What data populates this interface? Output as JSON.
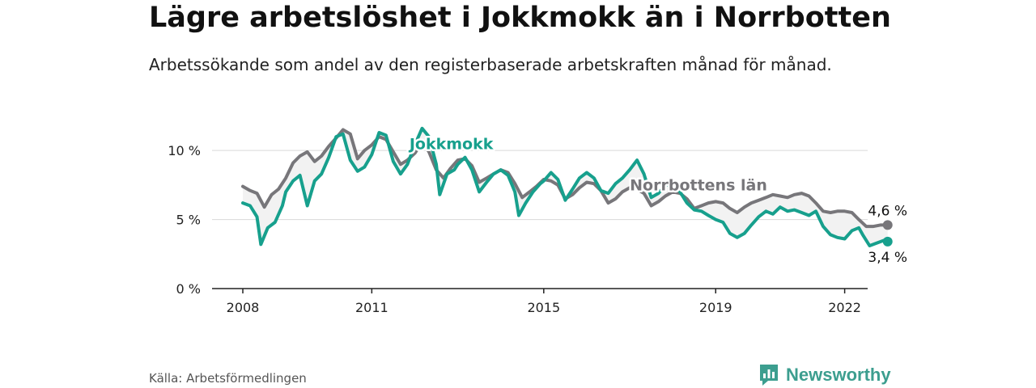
{
  "title": "Lägre arbetslöshet i Jokkmokk än i Norrbotten",
  "subtitle": "Arbetssökande som andel av den registerbaserade arbetskraften månad för månad.",
  "source": "Källa: Arbetsförmedlingen",
  "brand": "Newsworthy",
  "colors": {
    "jokkmokk": "#17a08d",
    "norrbotten": "#77767a",
    "fill": "#f2f2f2",
    "grid": "#d9d9d9",
    "brand": "#3c9e8f"
  },
  "chart_data": {
    "type": "line",
    "x_domain": [
      2008,
      2023.25
    ],
    "ylim": [
      0,
      12
    ],
    "y_ticks": [
      {
        "value": 0,
        "label": "0 %"
      },
      {
        "value": 5,
        "label": "5 %"
      },
      {
        "value": 10,
        "label": "10 %"
      }
    ],
    "x_ticks": [
      {
        "value": 2008,
        "label": "2008"
      },
      {
        "value": 2011,
        "label": "2011"
      },
      {
        "value": 2015,
        "label": "2015"
      },
      {
        "value": 2019,
        "label": "2019"
      },
      {
        "value": 2022,
        "label": "2022"
      }
    ],
    "series": [
      {
        "name": "Norrbottens län",
        "key": "norrbotten",
        "end_label": "4,6 %",
        "points": [
          [
            2008.0,
            7.4
          ],
          [
            2008.17,
            7.1
          ],
          [
            2008.33,
            6.9
          ],
          [
            2008.5,
            5.9
          ],
          [
            2008.67,
            6.8
          ],
          [
            2008.83,
            7.2
          ],
          [
            2009.0,
            8.0
          ],
          [
            2009.17,
            9.1
          ],
          [
            2009.33,
            9.6
          ],
          [
            2009.5,
            9.9
          ],
          [
            2009.67,
            9.2
          ],
          [
            2009.83,
            9.6
          ],
          [
            2010.0,
            10.3
          ],
          [
            2010.17,
            10.9
          ],
          [
            2010.33,
            11.5
          ],
          [
            2010.5,
            11.2
          ],
          [
            2010.67,
            9.4
          ],
          [
            2010.83,
            10.0
          ],
          [
            2011.0,
            10.4
          ],
          [
            2011.17,
            11.0
          ],
          [
            2011.33,
            10.8
          ],
          [
            2011.5,
            9.9
          ],
          [
            2011.67,
            9.0
          ],
          [
            2011.83,
            9.3
          ],
          [
            2012.0,
            9.8
          ],
          [
            2012.17,
            10.6
          ],
          [
            2012.33,
            9.9
          ],
          [
            2012.5,
            8.6
          ],
          [
            2012.67,
            8.0
          ],
          [
            2012.83,
            8.7
          ],
          [
            2013.0,
            9.3
          ],
          [
            2013.17,
            9.4
          ],
          [
            2013.33,
            8.9
          ],
          [
            2013.5,
            7.7
          ],
          [
            2013.67,
            8.0
          ],
          [
            2013.83,
            8.3
          ],
          [
            2014.0,
            8.6
          ],
          [
            2014.17,
            8.4
          ],
          [
            2014.33,
            7.6
          ],
          [
            2014.5,
            6.6
          ],
          [
            2014.67,
            7.0
          ],
          [
            2014.83,
            7.4
          ],
          [
            2015.0,
            7.9
          ],
          [
            2015.17,
            7.8
          ],
          [
            2015.33,
            7.5
          ],
          [
            2015.5,
            6.5
          ],
          [
            2015.67,
            6.8
          ],
          [
            2015.83,
            7.3
          ],
          [
            2016.0,
            7.7
          ],
          [
            2016.17,
            7.6
          ],
          [
            2016.33,
            7.1
          ],
          [
            2016.5,
            6.2
          ],
          [
            2016.67,
            6.5
          ],
          [
            2016.83,
            7.0
          ],
          [
            2017.0,
            7.3
          ],
          [
            2017.17,
            7.2
          ],
          [
            2017.33,
            6.9
          ],
          [
            2017.5,
            6.0
          ],
          [
            2017.67,
            6.3
          ],
          [
            2017.83,
            6.7
          ],
          [
            2018.0,
            7.0
          ],
          [
            2018.17,
            6.9
          ],
          [
            2018.33,
            6.5
          ],
          [
            2018.5,
            5.8
          ],
          [
            2018.67,
            6.0
          ],
          [
            2018.83,
            6.2
          ],
          [
            2019.0,
            6.3
          ],
          [
            2019.17,
            6.2
          ],
          [
            2019.33,
            5.8
          ],
          [
            2019.5,
            5.5
          ],
          [
            2019.67,
            5.9
          ],
          [
            2019.83,
            6.2
          ],
          [
            2020.0,
            6.4
          ],
          [
            2020.17,
            6.6
          ],
          [
            2020.33,
            6.8
          ],
          [
            2020.5,
            6.7
          ],
          [
            2020.67,
            6.6
          ],
          [
            2020.83,
            6.8
          ],
          [
            2021.0,
            6.9
          ],
          [
            2021.17,
            6.7
          ],
          [
            2021.33,
            6.2
          ],
          [
            2021.5,
            5.6
          ],
          [
            2021.67,
            5.5
          ],
          [
            2021.83,
            5.6
          ],
          [
            2022.0,
            5.6
          ],
          [
            2022.17,
            5.5
          ],
          [
            2022.33,
            5.0
          ],
          [
            2022.5,
            4.5
          ],
          [
            2022.67,
            4.5
          ],
          [
            2022.83,
            4.6
          ],
          [
            2023.0,
            4.6
          ]
        ]
      },
      {
        "name": "Jokkmokk",
        "key": "jokkmokk",
        "end_label": "3,4 %",
        "points": [
          [
            2008.0,
            6.2
          ],
          [
            2008.17,
            6.0
          ],
          [
            2008.33,
            5.2
          ],
          [
            2008.42,
            3.2
          ],
          [
            2008.58,
            4.4
          ],
          [
            2008.75,
            4.8
          ],
          [
            2008.92,
            6.0
          ],
          [
            2009.0,
            7.0
          ],
          [
            2009.17,
            7.8
          ],
          [
            2009.33,
            8.2
          ],
          [
            2009.5,
            6.0
          ],
          [
            2009.67,
            7.8
          ],
          [
            2009.83,
            8.3
          ],
          [
            2010.0,
            9.5
          ],
          [
            2010.17,
            11.0
          ],
          [
            2010.33,
            11.2
          ],
          [
            2010.5,
            9.3
          ],
          [
            2010.67,
            8.5
          ],
          [
            2010.83,
            8.8
          ],
          [
            2011.0,
            9.7
          ],
          [
            2011.17,
            11.3
          ],
          [
            2011.33,
            11.1
          ],
          [
            2011.5,
            9.2
          ],
          [
            2011.67,
            8.3
          ],
          [
            2011.83,
            9.0
          ],
          [
            2012.0,
            10.4
          ],
          [
            2012.17,
            11.6
          ],
          [
            2012.33,
            11.0
          ],
          [
            2012.5,
            9.0
          ],
          [
            2012.58,
            6.8
          ],
          [
            2012.75,
            8.3
          ],
          [
            2012.92,
            8.6
          ],
          [
            2013.0,
            9.0
          ],
          [
            2013.17,
            9.5
          ],
          [
            2013.33,
            8.6
          ],
          [
            2013.5,
            7.0
          ],
          [
            2013.67,
            7.7
          ],
          [
            2013.83,
            8.3
          ],
          [
            2014.0,
            8.6
          ],
          [
            2014.17,
            8.2
          ],
          [
            2014.33,
            7.0
          ],
          [
            2014.42,
            5.3
          ],
          [
            2014.58,
            6.2
          ],
          [
            2014.75,
            7.0
          ],
          [
            2014.92,
            7.6
          ],
          [
            2015.0,
            7.8
          ],
          [
            2015.17,
            8.4
          ],
          [
            2015.33,
            7.9
          ],
          [
            2015.5,
            6.4
          ],
          [
            2015.67,
            7.2
          ],
          [
            2015.83,
            8.0
          ],
          [
            2016.0,
            8.4
          ],
          [
            2016.17,
            8.0
          ],
          [
            2016.33,
            7.1
          ],
          [
            2016.5,
            6.9
          ],
          [
            2016.67,
            7.6
          ],
          [
            2016.83,
            8.0
          ],
          [
            2017.0,
            8.6
          ],
          [
            2017.17,
            9.3
          ],
          [
            2017.33,
            8.3
          ],
          [
            2017.5,
            6.6
          ],
          [
            2017.67,
            6.9
          ],
          [
            2017.83,
            7.5
          ],
          [
            2018.0,
            7.6
          ],
          [
            2018.17,
            7.0
          ],
          [
            2018.33,
            6.2
          ],
          [
            2018.5,
            5.7
          ],
          [
            2018.67,
            5.6
          ],
          [
            2018.83,
            5.3
          ],
          [
            2019.0,
            5.0
          ],
          [
            2019.17,
            4.8
          ],
          [
            2019.33,
            4.0
          ],
          [
            2019.5,
            3.7
          ],
          [
            2019.67,
            4.0
          ],
          [
            2019.83,
            4.6
          ],
          [
            2020.0,
            5.2
          ],
          [
            2020.17,
            5.6
          ],
          [
            2020.33,
            5.4
          ],
          [
            2020.5,
            5.9
          ],
          [
            2020.67,
            5.6
          ],
          [
            2020.83,
            5.7
          ],
          [
            2021.0,
            5.5
          ],
          [
            2021.17,
            5.3
          ],
          [
            2021.33,
            5.6
          ],
          [
            2021.5,
            4.5
          ],
          [
            2021.67,
            3.9
          ],
          [
            2021.83,
            3.7
          ],
          [
            2022.0,
            3.6
          ],
          [
            2022.17,
            4.2
          ],
          [
            2022.33,
            4.4
          ],
          [
            2022.42,
            3.9
          ],
          [
            2022.58,
            3.1
          ],
          [
            2022.75,
            3.3
          ],
          [
            2022.92,
            3.5
          ],
          [
            2023.0,
            3.4
          ]
        ]
      }
    ],
    "annotations": [
      {
        "series": "jokkmokk",
        "text": "Jokkmokk",
        "x": 2012.85,
        "y": 10.1
      },
      {
        "series": "norrbotten",
        "text": "Norrbottens län",
        "x": 2018.6,
        "y": 7.1
      }
    ]
  }
}
